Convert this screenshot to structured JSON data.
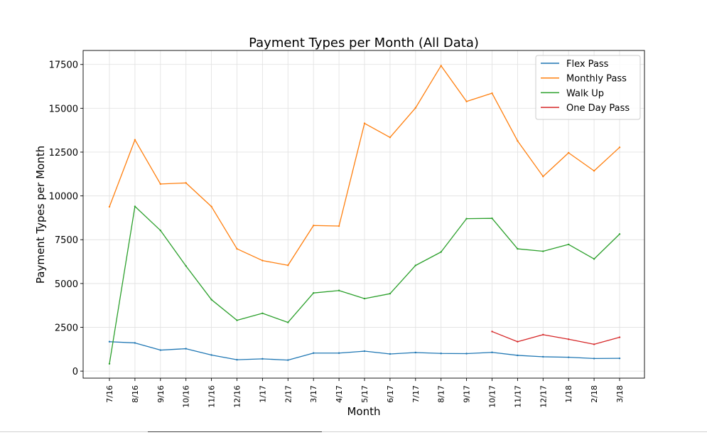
{
  "chart_data": {
    "type": "line",
    "title": "Payment Types per Month (All Data)",
    "xlabel": "Month",
    "ylabel": "Payment Types per Month",
    "categories": [
      "7/16",
      "8/16",
      "9/16",
      "10/16",
      "11/16",
      "12/16",
      "1/17",
      "2/17",
      "3/17",
      "4/17",
      "5/17",
      "6/17",
      "7/17",
      "8/17",
      "9/17",
      "10/17",
      "11/17",
      "12/17",
      "1/18",
      "2/18",
      "3/18"
    ],
    "ylim": [
      -400,
      18300
    ],
    "yticks": [
      0,
      2500,
      5000,
      7500,
      10000,
      12500,
      15000,
      17500
    ],
    "grid": true,
    "legend_position": "top-right",
    "series": [
      {
        "name": "Flex Pass",
        "color": "#1f77b4",
        "values": [
          1680,
          1610,
          1200,
          1280,
          920,
          650,
          700,
          630,
          1030,
          1030,
          1140,
          980,
          1060,
          1010,
          1000,
          1070,
          900,
          820,
          790,
          720,
          730
        ]
      },
      {
        "name": "Monthly Pass",
        "color": "#ff7f0e",
        "values": [
          9380,
          13200,
          10680,
          10740,
          9390,
          6980,
          6310,
          6040,
          8310,
          8280,
          14140,
          13340,
          15020,
          17430,
          15390,
          15860,
          13140,
          11110,
          12460,
          11430,
          12770
        ]
      },
      {
        "name": "Walk Up",
        "color": "#2ca02c",
        "values": [
          420,
          9400,
          8030,
          6000,
          4080,
          2900,
          3300,
          2780,
          4460,
          4600,
          4140,
          4420,
          6030,
          6800,
          8700,
          8720,
          6980,
          6840,
          7230,
          6400,
          7820
        ]
      },
      {
        "name": "One Day Pass",
        "color": "#d62728",
        "values": [
          null,
          null,
          null,
          null,
          null,
          null,
          null,
          null,
          null,
          null,
          null,
          null,
          null,
          null,
          null,
          2260,
          1680,
          2080,
          1820,
          1530,
          1930
        ]
      }
    ]
  }
}
